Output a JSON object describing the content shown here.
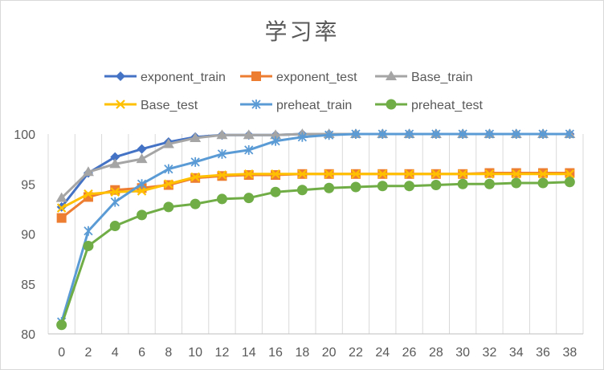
{
  "chart_data": {
    "type": "line",
    "title": "学习率",
    "x": [
      0,
      2,
      4,
      6,
      8,
      10,
      12,
      14,
      16,
      18,
      20,
      22,
      24,
      26,
      28,
      30,
      32,
      34,
      36,
      38
    ],
    "x_tick_labels": [
      "0",
      "2",
      "4",
      "6",
      "8",
      "10",
      "12",
      "14",
      "16",
      "18",
      "20",
      "22",
      "24",
      "26",
      "28",
      "30",
      "32",
      "34",
      "36",
      "38"
    ],
    "y_tick_labels": [
      "80",
      "85",
      "90",
      "95",
      "100"
    ],
    "ylim": [
      80,
      100
    ],
    "grid": "vertical gridlines",
    "legend_position": "top",
    "series": [
      {
        "name": "exponent_train",
        "color": "#4472c4",
        "marker": "diamond",
        "values": [
          92.7,
          96.1,
          97.7,
          98.5,
          99.2,
          99.7,
          99.9,
          99.9,
          99.9,
          100,
          100,
          100,
          100,
          100,
          100,
          100,
          100,
          100,
          100,
          100
        ]
      },
      {
        "name": "exponent_test",
        "color": "#ed7d31",
        "marker": "square",
        "values": [
          91.6,
          93.7,
          94.4,
          94.6,
          94.9,
          95.6,
          95.8,
          95.9,
          95.9,
          96.0,
          96.0,
          96.0,
          96.0,
          96.0,
          96.0,
          96.0,
          96.1,
          96.1,
          96.1,
          96.1
        ]
      },
      {
        "name": "Base_train",
        "color": "#a5a5a5",
        "marker": "triangle",
        "values": [
          93.6,
          96.2,
          97.0,
          97.5,
          99.0,
          99.6,
          99.9,
          99.9,
          99.9,
          100,
          100,
          100,
          100,
          100,
          100,
          100,
          100,
          100,
          100,
          100
        ]
      },
      {
        "name": "Base_test",
        "color": "#ffc000",
        "marker": "x",
        "values": [
          92.6,
          94.0,
          94.2,
          94.3,
          95.0,
          95.7,
          95.9,
          96.0,
          96.0,
          96.0,
          96.0,
          96.0,
          96.0,
          96.0,
          96.0,
          96.0,
          96.0,
          96.0,
          96.0,
          96.0
        ]
      },
      {
        "name": "preheat_train",
        "color": "#5b9bd5",
        "marker": "asterisk",
        "values": [
          81.2,
          90.3,
          93.2,
          95.0,
          96.5,
          97.2,
          98.0,
          98.4,
          99.3,
          99.7,
          99.9,
          100,
          100,
          100,
          100,
          100,
          100,
          100,
          100,
          100
        ]
      },
      {
        "name": "preheat_test",
        "color": "#70ad47",
        "marker": "circle",
        "values": [
          80.9,
          88.8,
          90.8,
          91.9,
          92.7,
          93.0,
          93.5,
          93.6,
          94.2,
          94.4,
          94.6,
          94.7,
          94.8,
          94.8,
          94.9,
          95.0,
          95.0,
          95.1,
          95.1,
          95.2
        ]
      }
    ]
  }
}
